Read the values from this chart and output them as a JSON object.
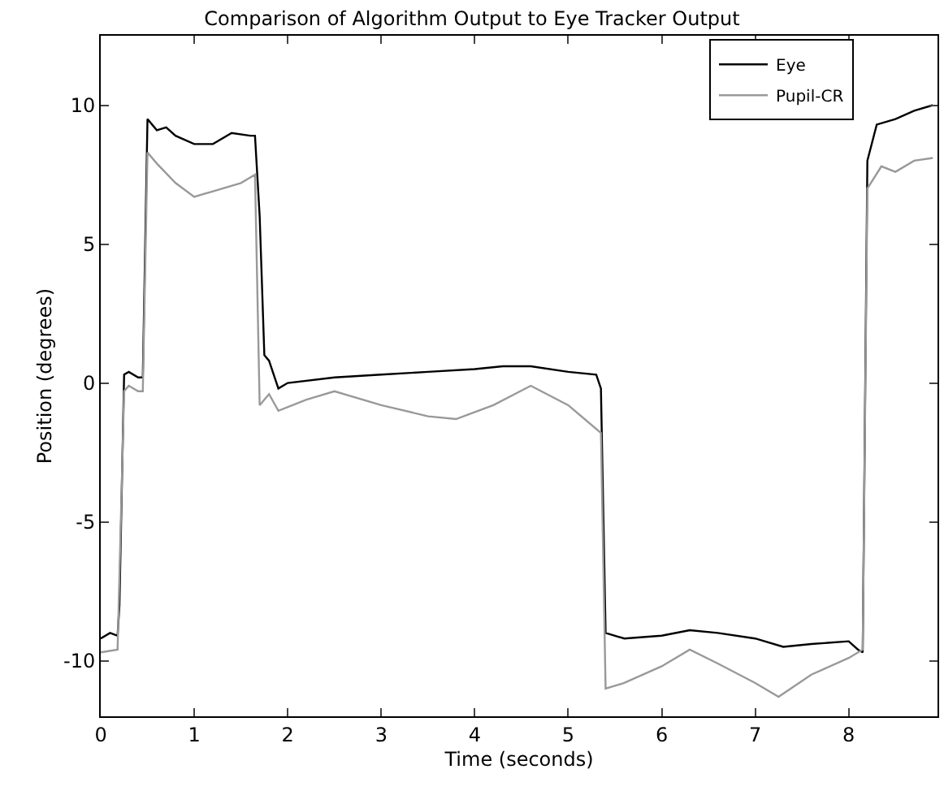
{
  "chart_data": {
    "type": "line",
    "title": "Comparison of Algorithm Output to Eye Tracker Output",
    "xlabel": "Time (seconds)",
    "ylabel": "Position (degrees)",
    "xlim": [
      0,
      8.95
    ],
    "ylim": [
      -12,
      12.5
    ],
    "xticks": [
      0,
      1,
      2,
      3,
      4,
      5,
      6,
      7,
      8
    ],
    "yticks": [
      -10,
      -5,
      0,
      5,
      10
    ],
    "legend": "top right",
    "line_style": "solid",
    "marker": "none",
    "series": [
      {
        "name": "Eye",
        "color": "#000000",
        "x": [
          0,
          0.1,
          0.18,
          0.2,
          0.25,
          0.3,
          0.4,
          0.45,
          0.5,
          0.6,
          0.7,
          0.8,
          1.0,
          1.2,
          1.4,
          1.6,
          1.65,
          1.7,
          1.75,
          1.8,
          1.9,
          2.0,
          2.5,
          3,
          3.5,
          4,
          4.3,
          4.6,
          5,
          5.3,
          5.35,
          5.4,
          5.6,
          6,
          6.3,
          6.6,
          7,
          7.3,
          7.6,
          8,
          8.1,
          8.15,
          8.2,
          8.3,
          8.5,
          8.7,
          8.9
        ],
        "values": [
          -9.2,
          -9.0,
          -9.1,
          -8.0,
          0.3,
          0.4,
          0.2,
          0.2,
          9.5,
          9.1,
          9.2,
          8.9,
          8.6,
          8.6,
          9.0,
          8.9,
          8.9,
          6.0,
          1.0,
          0.8,
          -0.2,
          0.0,
          0.2,
          0.3,
          0.4,
          0.5,
          0.6,
          0.6,
          0.4,
          0.3,
          -0.2,
          -9.0,
          -9.2,
          -9.1,
          -8.9,
          -9.0,
          -9.2,
          -9.5,
          -9.4,
          -9.3,
          -9.6,
          -9.7,
          8.0,
          9.3,
          9.5,
          9.8,
          10.0
        ]
      },
      {
        "name": "Pupil-CR",
        "color": "#999999",
        "x": [
          0,
          0.18,
          0.25,
          0.3,
          0.4,
          0.45,
          0.5,
          0.6,
          0.8,
          1.0,
          1.2,
          1.5,
          1.65,
          1.7,
          1.8,
          1.9,
          2.2,
          2.5,
          3,
          3.5,
          3.8,
          4.2,
          4.6,
          5.0,
          5.35,
          5.4,
          5.6,
          6,
          6.3,
          6.6,
          7.0,
          7.25,
          7.6,
          8.0,
          8.15,
          8.2,
          8.35,
          8.5,
          8.7,
          8.9
        ],
        "values": [
          -9.7,
          -9.6,
          -0.3,
          -0.1,
          -0.3,
          -0.3,
          8.3,
          7.9,
          7.2,
          6.7,
          6.9,
          7.2,
          7.5,
          -0.8,
          -0.4,
          -1.0,
          -0.6,
          -0.3,
          -0.8,
          -1.2,
          -1.3,
          -0.8,
          -0.1,
          -0.8,
          -1.8,
          -11.0,
          -10.8,
          -10.2,
          -9.6,
          -10.1,
          -10.8,
          -11.3,
          -10.5,
          -9.9,
          -9.6,
          7.0,
          7.8,
          7.6,
          8.0,
          8.1
        ]
      }
    ]
  }
}
